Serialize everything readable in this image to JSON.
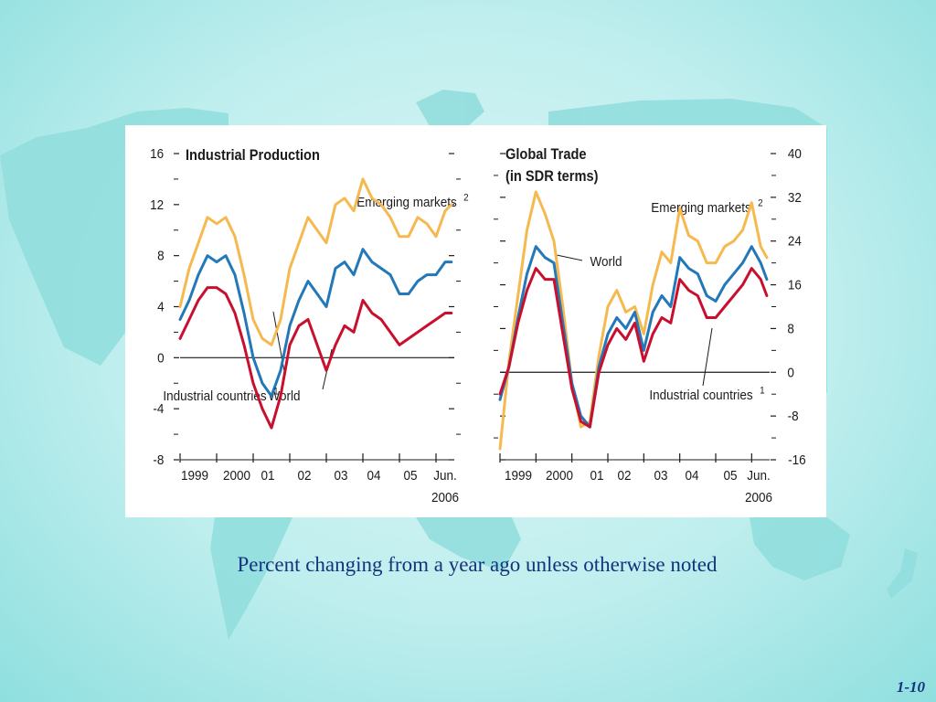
{
  "slide": {
    "caption": "Percent changing from a year ago unless otherwise noted",
    "page_number": "1-10"
  },
  "colors": {
    "background": "#bfeeee",
    "map_land": "#8fdcdc",
    "emerging_markets": "#f6b94f",
    "world": "#2278b8",
    "industrial_countries": "#c8102e",
    "caption_text": "#13337d"
  },
  "chart_data": [
    {
      "type": "line",
      "title": "Industrial Production",
      "xlabel": "",
      "ylabel": "",
      "ylim": [
        -8,
        16
      ],
      "yticks": [
        -8,
        -4,
        0,
        4,
        8,
        12,
        16
      ],
      "x_tick_labels": [
        "1999",
        "2000",
        "01",
        "02",
        "03",
        "04",
        "05",
        "Jun."
      ],
      "x_tick_sublabel": "2006",
      "x_range": [
        1999.0,
        2006.5
      ],
      "zero_line": true,
      "series": [
        {
          "name": "Emerging markets",
          "footnote": "2",
          "x": [
            1999.0,
            1999.25,
            1999.5,
            1999.75,
            2000.0,
            2000.25,
            2000.5,
            2000.75,
            2001.0,
            2001.25,
            2001.5,
            2001.75,
            2002.0,
            2002.25,
            2002.5,
            2002.75,
            2003.0,
            2003.25,
            2003.5,
            2003.75,
            2004.0,
            2004.25,
            2004.5,
            2004.75,
            2005.0,
            2005.25,
            2005.5,
            2005.75,
            2006.0,
            2006.25,
            2006.42
          ],
          "y": [
            4,
            7,
            9,
            11,
            10.5,
            11,
            9.5,
            6.5,
            3,
            1.5,
            1,
            3,
            7,
            9,
            11,
            10,
            9,
            12,
            12.5,
            11.5,
            14,
            12.5,
            12,
            11,
            9.5,
            9.5,
            11,
            10.5,
            9.5,
            11.5,
            12
          ]
        },
        {
          "name": "World",
          "x": [
            1999.0,
            1999.25,
            1999.5,
            1999.75,
            2000.0,
            2000.25,
            2000.5,
            2000.75,
            2001.0,
            2001.25,
            2001.5,
            2001.75,
            2002.0,
            2002.25,
            2002.5,
            2002.75,
            2003.0,
            2003.25,
            2003.5,
            2003.75,
            2004.0,
            2004.25,
            2004.5,
            2004.75,
            2005.0,
            2005.25,
            2005.5,
            2005.75,
            2006.0,
            2006.25,
            2006.42
          ],
          "y": [
            3,
            4.5,
            6.5,
            8,
            7.5,
            8,
            6.5,
            3.5,
            0,
            -2,
            -3,
            -1,
            2.5,
            4.5,
            6,
            5,
            4,
            7,
            7.5,
            6.5,
            8.5,
            7.5,
            7,
            6.5,
            5,
            5,
            6,
            6.5,
            6.5,
            7.5,
            7.5
          ]
        },
        {
          "name": "Industrial countries",
          "footnote": "1",
          "x": [
            1999.0,
            1999.25,
            1999.5,
            1999.75,
            2000.0,
            2000.25,
            2000.5,
            2000.75,
            2001.0,
            2001.25,
            2001.5,
            2001.75,
            2002.0,
            2002.25,
            2002.5,
            2002.75,
            2003.0,
            2003.25,
            2003.5,
            2003.75,
            2004.0,
            2004.25,
            2004.5,
            2004.75,
            2005.0,
            2005.25,
            2005.5,
            2005.75,
            2006.0,
            2006.25,
            2006.42
          ],
          "y": [
            1.5,
            3,
            4.5,
            5.5,
            5.5,
            5,
            3.5,
            1,
            -2,
            -4,
            -5.5,
            -3,
            1,
            2.5,
            3,
            1,
            -1,
            1,
            2.5,
            2,
            4.5,
            3.5,
            3,
            2,
            1,
            1.5,
            2,
            2.5,
            3,
            3.5,
            3.5
          ]
        }
      ]
    },
    {
      "type": "line",
      "title": "Global Trade",
      "subtitle": "(in SDR terms)",
      "xlabel": "",
      "ylabel": "",
      "ylim": [
        -16,
        40
      ],
      "yticks": [
        -16,
        -8,
        0,
        8,
        16,
        24,
        32,
        40
      ],
      "y_axis_side": "right",
      "x_tick_labels": [
        "1999",
        "2000",
        "01",
        "02",
        "03",
        "04",
        "05",
        "Jun."
      ],
      "x_tick_sublabel": "2006",
      "x_range": [
        1999.0,
        2006.5
      ],
      "zero_line": true,
      "series": [
        {
          "name": "Emerging markets",
          "footnote": "2",
          "x": [
            1999.0,
            1999.25,
            1999.5,
            1999.75,
            2000.0,
            2000.25,
            2000.5,
            2000.75,
            2001.0,
            2001.25,
            2001.5,
            2001.75,
            2002.0,
            2002.25,
            2002.5,
            2002.75,
            2003.0,
            2003.25,
            2003.5,
            2003.75,
            2004.0,
            2004.25,
            2004.5,
            2004.75,
            2005.0,
            2005.25,
            2005.5,
            2005.75,
            2006.0,
            2006.25,
            2006.42
          ],
          "y": [
            -14,
            2,
            14,
            26,
            33,
            29,
            24,
            12,
            -2,
            -10,
            -9,
            3,
            12,
            15,
            11,
            12,
            7,
            16,
            22,
            20,
            30,
            25,
            24,
            20,
            20,
            23,
            24,
            26,
            31,
            23,
            21
          ]
        },
        {
          "name": "World",
          "x": [
            1999.0,
            1999.25,
            1999.5,
            1999.75,
            2000.0,
            2000.25,
            2000.5,
            2000.75,
            2001.0,
            2001.25,
            2001.5,
            2001.75,
            2002.0,
            2002.25,
            2002.5,
            2002.75,
            2003.0,
            2003.25,
            2003.5,
            2003.75,
            2004.0,
            2004.25,
            2004.5,
            2004.75,
            2005.0,
            2005.25,
            2005.5,
            2005.75,
            2006.0,
            2006.25,
            2006.42
          ],
          "y": [
            -5,
            1,
            10,
            18,
            23,
            21,
            20,
            9,
            -2,
            -8,
            -10,
            1,
            7,
            10,
            8,
            11,
            4,
            11,
            14,
            12,
            21,
            19,
            18,
            14,
            13,
            16,
            18,
            20,
            23,
            20,
            17
          ]
        },
        {
          "name": "Industrial countries",
          "footnote": "1",
          "x": [
            1999.0,
            1999.25,
            1999.5,
            1999.75,
            2000.0,
            2000.25,
            2000.5,
            2000.75,
            2001.0,
            2001.25,
            2001.5,
            2001.75,
            2002.0,
            2002.25,
            2002.5,
            2002.75,
            2003.0,
            2003.25,
            2003.5,
            2003.75,
            2004.0,
            2004.25,
            2004.5,
            2004.75,
            2005.0,
            2005.25,
            2005.5,
            2005.75,
            2006.0,
            2006.25,
            2006.42
          ],
          "y": [
            -4,
            1,
            9,
            15,
            19,
            17,
            17,
            7,
            -3,
            -9,
            -10,
            0,
            5,
            8,
            6,
            9,
            2,
            7,
            10,
            9,
            17,
            15,
            14,
            10,
            10,
            12,
            14,
            16,
            19,
            17,
            14
          ]
        }
      ]
    }
  ]
}
